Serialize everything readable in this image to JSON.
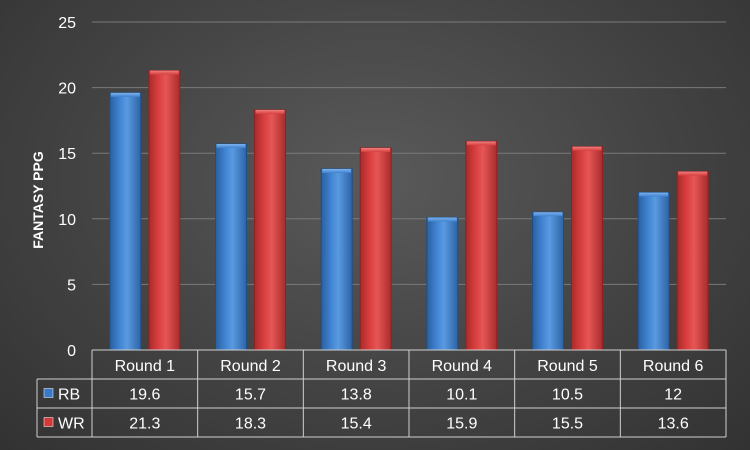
{
  "chart_data": {
    "type": "bar",
    "title": "",
    "xlabel": "",
    "ylabel": "FANTASY PPG",
    "ylim": [
      0,
      25
    ],
    "yticks": [
      0,
      5,
      10,
      15,
      20,
      25
    ],
    "grid": true,
    "legend": "data-table",
    "categories": [
      "Round 1",
      "Round 2",
      "Round 3",
      "Round 4",
      "Round 5",
      "Round 6"
    ],
    "series": [
      {
        "name": "RB",
        "color": "#3a78c8",
        "values": [
          19.6,
          15.7,
          13.8,
          10.1,
          10.5,
          12
        ],
        "labels": [
          "19.6",
          "15.7",
          "13.8",
          "10.1",
          "10.5",
          "12"
        ]
      },
      {
        "name": "WR",
        "color": "#d23a3a",
        "values": [
          21.3,
          18.3,
          15.4,
          15.9,
          15.5,
          13.6
        ],
        "labels": [
          "21.3",
          "18.3",
          "15.4",
          "15.9",
          "15.5",
          "13.6"
        ]
      }
    ]
  }
}
